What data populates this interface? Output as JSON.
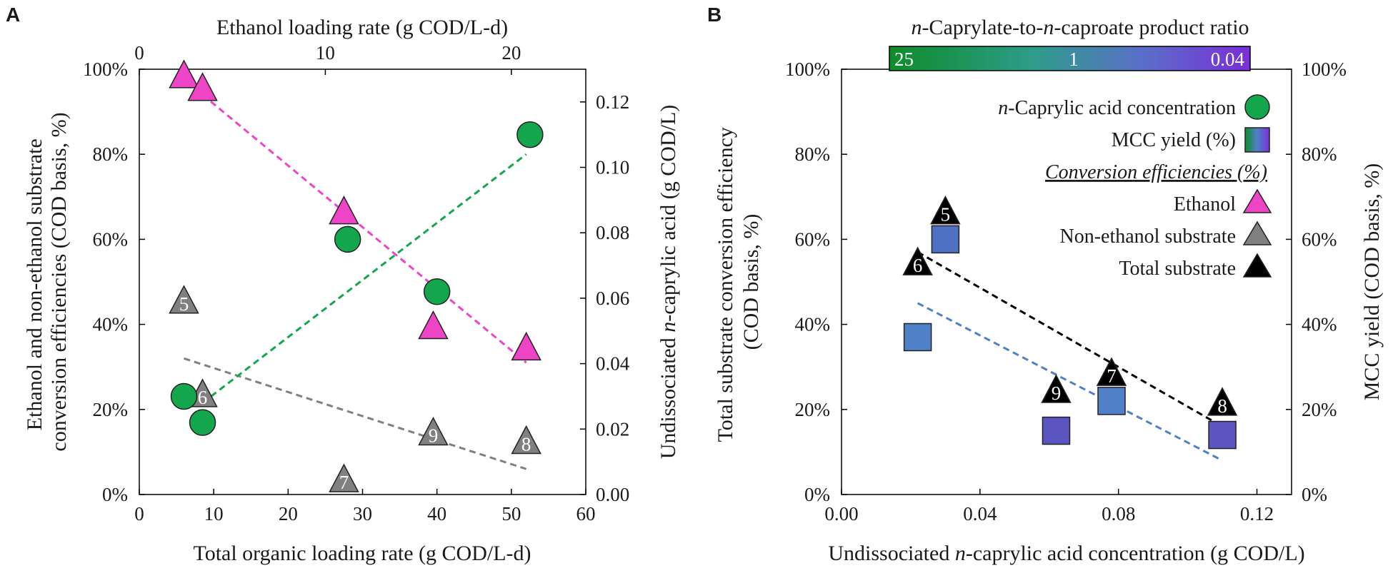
{
  "panels": [
    {
      "letter": "A"
    },
    {
      "letter": "B"
    }
  ],
  "chart_data": [
    {
      "type": "scatter",
      "panel": "A",
      "xlabel": "Total organic loading rate (g COD/L-d)",
      "x_top_label": "Ethanol loading rate (g COD/L-d)",
      "ylabel_lines": [
        "Ethanol and non-ethanol substrate",
        "conversion efficiencies (COD basis, %)"
      ],
      "y2label": "Undissociated n-caprylic acid (g COD/L)",
      "y2label_parts": [
        "Undissociated ",
        "n",
        "-caprylic acid (g COD/L)"
      ],
      "xlim": [
        0,
        60
      ],
      "x_ticks": [
        "0",
        "10",
        "20",
        "30",
        "40",
        "50",
        "60"
      ],
      "x_top_lim": [
        0,
        24
      ],
      "x_top_ticks": [
        "0",
        "10",
        "20"
      ],
      "ylim": [
        0,
        100
      ],
      "y_ticks": [
        "0%",
        "20%",
        "40%",
        "60%",
        "80%",
        "100%"
      ],
      "y2lim": [
        0,
        0.13
      ],
      "y2_ticks": [
        "0.00",
        "0.02",
        "0.04",
        "0.06",
        "0.08",
        "0.10",
        "0.12"
      ],
      "series": [
        {
          "name": "Ethanol conversion efficiency",
          "marker": "triangle",
          "color": "#ee44c6",
          "axis": "left",
          "x": [
            6,
            8.5,
            27.5,
            39.5,
            52
          ],
          "y": [
            98,
            95,
            66,
            39,
            34
          ],
          "labels": [
            "",
            "",
            "",
            "",
            ""
          ],
          "trend": {
            "x": [
              8.5,
              52
            ],
            "y": [
              94,
              31
            ],
            "color": "#ee44c6"
          }
        },
        {
          "name": "Non-ethanol substrate conversion efficiency",
          "marker": "triangle",
          "color": "#808080",
          "axis": "left",
          "x": [
            6,
            8.5,
            27.5,
            39.5,
            52
          ],
          "y": [
            45,
            23,
            3,
            14,
            12
          ],
          "labels": [
            "5",
            "6",
            "7",
            "9",
            "8"
          ],
          "trend": {
            "x": [
              6,
              52
            ],
            "y": [
              32,
              6
            ],
            "color": "#808080"
          }
        },
        {
          "name": "n-Caprylic acid concentration",
          "marker": "circle",
          "color": "#13a64c",
          "axis": "right",
          "x": [
            6,
            8.5,
            28,
            40,
            52.5
          ],
          "y": [
            0.03,
            0.022,
            0.078,
            0.062,
            0.11
          ],
          "trend": {
            "x": [
              8.5,
              52
            ],
            "y": [
              0.028,
              0.104
            ],
            "color": "#13a64c"
          }
        }
      ]
    },
    {
      "type": "scatter",
      "panel": "B",
      "xlabel": "Undissociated n-caprylic acid concentration (g COD/L)",
      "xlabel_parts": [
        "Undissociated ",
        "n",
        "-caprylic acid concentration (g COD/L)"
      ],
      "ylabel_lines": [
        "Total substrate conversion efficiency",
        "(COD basis, %)"
      ],
      "y2label": "MCC yield (COD basis, %)",
      "xlim": [
        0,
        0.13
      ],
      "x_ticks": [
        "0.00",
        "0.04",
        "0.08",
        "0.12"
      ],
      "ylim": [
        0,
        100
      ],
      "y_ticks": [
        "0%",
        "20%",
        "40%",
        "60%",
        "80%",
        "100%"
      ],
      "y2lim": [
        0,
        100
      ],
      "y2_ticks": [
        "0%",
        "20%",
        "40%",
        "60%",
        "80%",
        "100%"
      ],
      "colorbar": {
        "title": "n-Caprylate-to-n-caproate product ratio",
        "title_parts": [
          "n",
          "-Caprylate-to-",
          "n",
          "-caproate product ratio"
        ],
        "labels": [
          "25",
          "1",
          "0.04"
        ],
        "colors": [
          "#0e8c2a",
          "#2e9c8a",
          "#5a6fc8",
          "#7a2ed8"
        ]
      },
      "series": [
        {
          "name": "Total substrate conversion efficiency",
          "marker": "triangle",
          "color": "#000000",
          "axis": "left",
          "x": [
            0.022,
            0.03,
            0.078,
            0.062,
            0.11
          ],
          "y": [
            54,
            66,
            28,
            24,
            21
          ],
          "labels": [
            "6",
            "5",
            "7",
            "9",
            "8"
          ],
          "trend": {
            "x": [
              0.022,
              0.11
            ],
            "y": [
              57,
              16
            ],
            "color": "#000000"
          }
        },
        {
          "name": "MCC yield",
          "marker": "square",
          "axis": "right",
          "x": [
            0.022,
            0.03,
            0.078,
            0.062,
            0.11
          ],
          "y": [
            37,
            60,
            22,
            15,
            14
          ],
          "colors": [
            "#4f80c8",
            "#4f70c4",
            "#4f80c8",
            "#5a55c0",
            "#5a55c0"
          ],
          "trend": {
            "x": [
              0.022,
              0.11
            ],
            "y": [
              45,
              8
            ],
            "color": "#4f80c8"
          }
        }
      ],
      "legend": [
        {
          "text": "n-Caprylic acid concentration",
          "parts": [
            "n",
            "-Caprylic acid concentration"
          ],
          "marker": "circle",
          "color": "#13a64c"
        },
        {
          "text": "MCC yield (%)",
          "parts": [
            "MCC yield (%)"
          ],
          "marker": "square-gradient"
        },
        {
          "text": "Conversion efficiencies (%)",
          "parts": [
            "Conversion efficiencies (%)"
          ],
          "marker": "none",
          "style": "heading"
        },
        {
          "text": "Ethanol",
          "parts": [
            "Ethanol"
          ],
          "marker": "triangle",
          "color": "#ee44c6"
        },
        {
          "text": "Non-ethanol substrate",
          "parts": [
            "Non-ethanol substrate"
          ],
          "marker": "triangle",
          "color": "#808080"
        },
        {
          "text": "Total substrate",
          "parts": [
            "Total substrate"
          ],
          "marker": "triangle",
          "color": "#000000"
        }
      ]
    }
  ]
}
